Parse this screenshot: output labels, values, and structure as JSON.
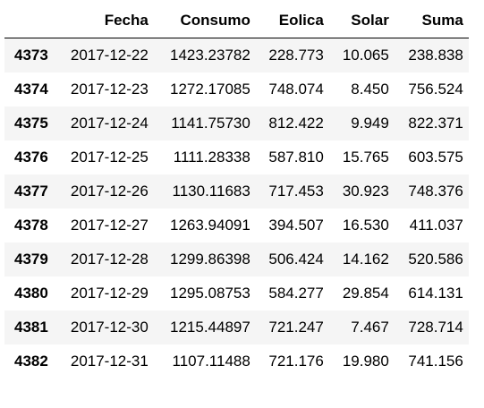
{
  "table": {
    "columns": [
      "",
      "Fecha",
      "Consumo",
      "Eolica",
      "Solar",
      "Suma"
    ],
    "rows": [
      {
        "index": "4373",
        "fecha": "2017-12-22",
        "consumo": "1423.23782",
        "eolica": "228.773",
        "solar": "10.065",
        "suma": "238.838"
      },
      {
        "index": "4374",
        "fecha": "2017-12-23",
        "consumo": "1272.17085",
        "eolica": "748.074",
        "solar": "8.450",
        "suma": "756.524"
      },
      {
        "index": "4375",
        "fecha": "2017-12-24",
        "consumo": "1141.75730",
        "eolica": "812.422",
        "solar": "9.949",
        "suma": "822.371"
      },
      {
        "index": "4376",
        "fecha": "2017-12-25",
        "consumo": "1111.28338",
        "eolica": "587.810",
        "solar": "15.765",
        "suma": "603.575"
      },
      {
        "index": "4377",
        "fecha": "2017-12-26",
        "consumo": "1130.11683",
        "eolica": "717.453",
        "solar": "30.923",
        "suma": "748.376"
      },
      {
        "index": "4378",
        "fecha": "2017-12-27",
        "consumo": "1263.94091",
        "eolica": "394.507",
        "solar": "16.530",
        "suma": "411.037"
      },
      {
        "index": "4379",
        "fecha": "2017-12-28",
        "consumo": "1299.86398",
        "eolica": "506.424",
        "solar": "14.162",
        "suma": "520.586"
      },
      {
        "index": "4380",
        "fecha": "2017-12-29",
        "consumo": "1295.08753",
        "eolica": "584.277",
        "solar": "29.854",
        "suma": "614.131"
      },
      {
        "index": "4381",
        "fecha": "2017-12-30",
        "consumo": "1215.44897",
        "eolica": "721.247",
        "solar": "7.467",
        "suma": "728.714"
      },
      {
        "index": "4382",
        "fecha": "2017-12-31",
        "consumo": "1107.11488",
        "eolica": "721.176",
        "solar": "19.980",
        "suma": "741.156"
      }
    ]
  }
}
